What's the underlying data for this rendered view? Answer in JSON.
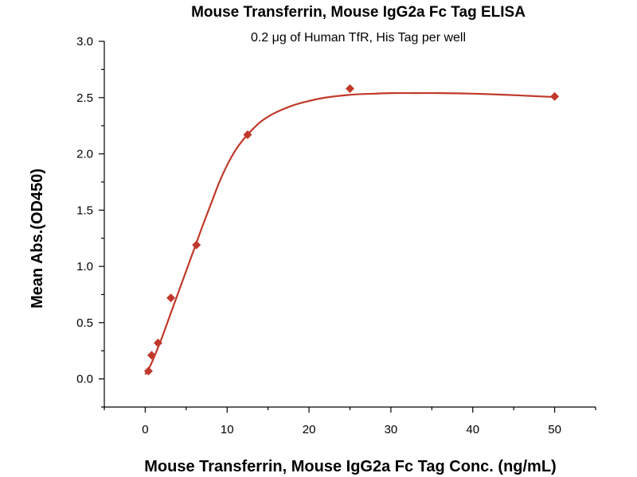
{
  "chart_data": {
    "type": "scatter",
    "title": "Mouse Transferrin, Mouse IgG2a Fc Tag ELISA",
    "subtitle": "0.2 μg of Human TfR, His Tag per well",
    "xlabel": "Mouse Transferrin, Mouse IgG2a Fc Tag Conc. (ng/mL)",
    "ylabel": "Mean Abs.(OD450)",
    "xlim": [
      -5,
      55
    ],
    "ylim": [
      -0.25,
      3.0
    ],
    "x_ticks": [
      0,
      10,
      20,
      30,
      40,
      50
    ],
    "x_tick_labels": [
      "0",
      "10",
      "20",
      "30",
      "40",
      "50"
    ],
    "y_ticks": [
      0.0,
      0.5,
      1.0,
      1.5,
      2.0,
      2.5,
      3.0
    ],
    "y_tick_labels": [
      "0.0",
      "0.5",
      "1.0",
      "1.5",
      "2.0",
      "2.5",
      "3.0"
    ],
    "grid": false,
    "marker_color": "#c0392b",
    "curve_color": "#c0392b",
    "series": [
      {
        "x": [
          0.39,
          0.78,
          1.56,
          3.13,
          6.25,
          12.5,
          25,
          50
        ],
        "y": [
          0.07,
          0.21,
          0.32,
          0.72,
          1.19,
          2.17,
          2.58,
          2.51
        ]
      }
    ],
    "fit_curve": {
      "x": [
        0,
        0.5,
        1,
        2,
        3,
        4,
        5,
        6,
        7,
        8,
        9,
        10,
        11,
        12,
        13,
        14,
        15,
        16,
        18,
        20,
        22,
        25,
        28,
        30,
        33,
        36,
        40,
        44,
        47,
        50
      ],
      "y": [
        0.04,
        0.1,
        0.18,
        0.36,
        0.56,
        0.76,
        0.96,
        1.16,
        1.36,
        1.55,
        1.74,
        1.9,
        2.03,
        2.13,
        2.21,
        2.28,
        2.33,
        2.37,
        2.43,
        2.47,
        2.5,
        2.525,
        2.535,
        2.54,
        2.54,
        2.54,
        2.535,
        2.525,
        2.515,
        2.505
      ]
    }
  }
}
